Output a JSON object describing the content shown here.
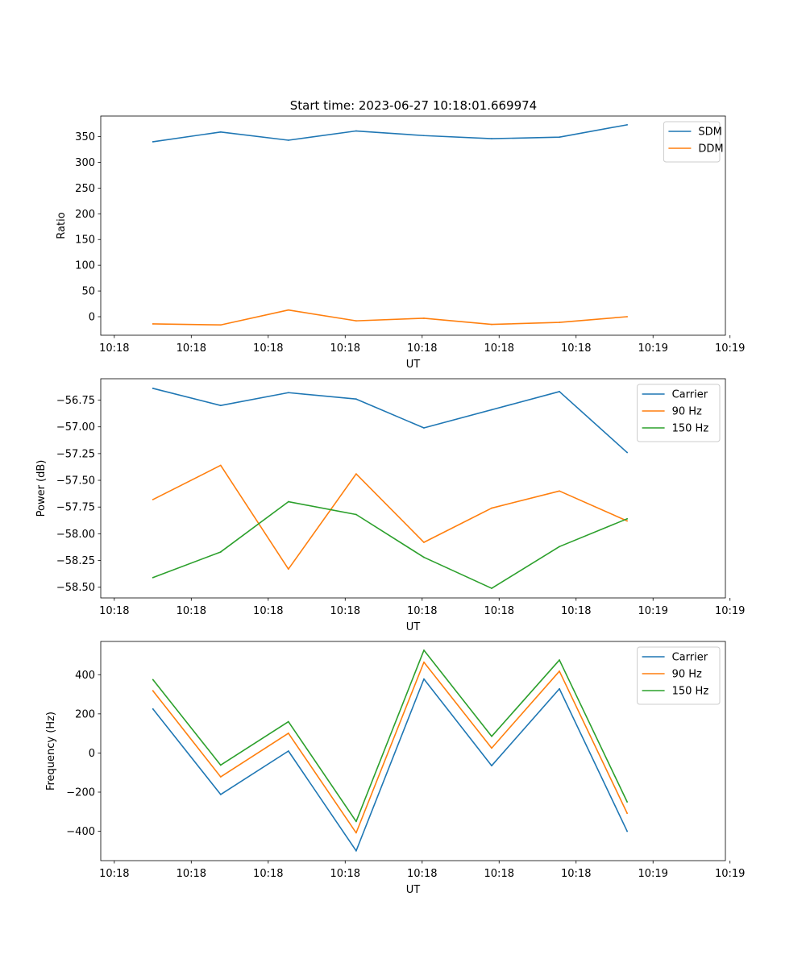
{
  "figure": {
    "title": "Start time: 2023-06-27 10:18:01.669974"
  },
  "chart_data": [
    {
      "type": "line",
      "title": "Start time: 2023-06-27 10:18:01.669974",
      "xlabel": "UT",
      "ylabel": "Ratio",
      "x_tick_labels": [
        "10:18",
        "10:18",
        "10:18",
        "10:18",
        "10:18",
        "10:18",
        "10:18"
      ],
      "x_last_tick_label": "10:19",
      "ylim": [
        -36,
        390
      ],
      "yticks": [
        0,
        50,
        100,
        150,
        200,
        250,
        300,
        350
      ],
      "legend": "top-right",
      "grid": false,
      "series": [
        {
          "name": "SDM",
          "color": "#1f77b4",
          "values": [
            340,
            359,
            343,
            361,
            352,
            346,
            349,
            373
          ]
        },
        {
          "name": "DDM",
          "color": "#ff7f0e",
          "values": [
            -14,
            -16,
            13,
            -8,
            -3,
            -15,
            -11,
            0
          ]
        }
      ]
    },
    {
      "type": "line",
      "title": "",
      "xlabel": "UT",
      "ylabel": "Power (dB)",
      "x_tick_labels": [
        "10:18",
        "10:18",
        "10:18",
        "10:18",
        "10:18",
        "10:18",
        "10:18"
      ],
      "x_last_tick_label": "10:19",
      "ylim": [
        -58.6,
        -56.55
      ],
      "yticks": [
        -58.5,
        -58.25,
        -58.0,
        -57.75,
        -57.5,
        -57.25,
        -57.0,
        -56.75
      ],
      "ytick_labels": [
        "−58.50",
        "−58.25",
        "−58.00",
        "−57.75",
        "−57.50",
        "−57.25",
        "−57.00",
        "−56.75"
      ],
      "legend": "top-right",
      "grid": false,
      "series": [
        {
          "name": "Carrier",
          "color": "#1f77b4",
          "values": [
            -56.64,
            -56.8,
            -56.68,
            -56.74,
            -57.01,
            -56.84,
            -56.67,
            -57.24
          ]
        },
        {
          "name": "90 Hz",
          "color": "#ff7f0e",
          "values": [
            -57.68,
            -57.36,
            -58.33,
            -57.44,
            -58.08,
            -57.76,
            -57.6,
            -57.88
          ]
        },
        {
          "name": "150 Hz",
          "color": "#2ca02c",
          "values": [
            -58.41,
            -58.17,
            -57.7,
            -57.82,
            -58.22,
            -58.51,
            -58.12,
            -57.86
          ]
        }
      ]
    },
    {
      "type": "line",
      "title": "",
      "xlabel": "UT",
      "ylabel": "Frequency (Hz)",
      "x_tick_labels": [
        "10:18",
        "10:18",
        "10:18",
        "10:18",
        "10:18",
        "10:18",
        "10:18"
      ],
      "x_last_tick_label": "10:19",
      "ylim": [
        -550,
        570
      ],
      "yticks": [
        -400,
        -200,
        0,
        200,
        400
      ],
      "ytick_labels": [
        "−400",
        "−200",
        "0",
        "200",
        "400"
      ],
      "legend": "top-right",
      "grid": false,
      "series": [
        {
          "name": "Carrier",
          "color": "#1f77b4",
          "values": [
            225,
            -212,
            10,
            -500,
            378,
            -65,
            328,
            -400
          ]
        },
        {
          "name": "90 Hz",
          "color": "#ff7f0e",
          "values": [
            318,
            -122,
            101,
            -408,
            464,
            25,
            418,
            -308
          ]
        },
        {
          "name": "150 Hz",
          "color": "#2ca02c",
          "values": [
            375,
            -62,
            160,
            -350,
            525,
            85,
            475,
            -250
          ]
        }
      ]
    }
  ]
}
